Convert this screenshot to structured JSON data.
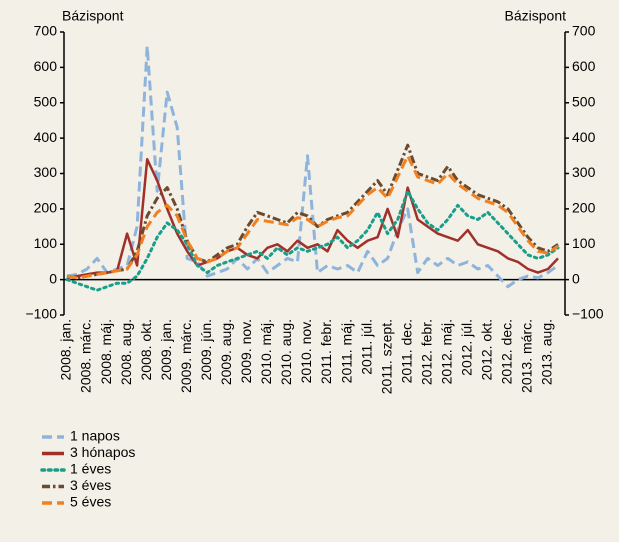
{
  "chart_data": {
    "type": "line",
    "ylabel": "Bázispont",
    "y2label": "Bázispont",
    "categories": [
      "2008. jan.",
      null,
      "2008. márc.",
      null,
      "2008. máj.",
      null,
      "2008. aug.",
      null,
      "2008. okt.",
      null,
      "2009. jan.",
      null,
      "2009. márc.",
      null,
      "2009. jún.",
      null,
      "2009. aug.",
      null,
      "2009. nov.",
      null,
      "2010. máj.",
      null,
      "2010. aug.",
      null,
      "2010. nov.",
      null,
      "2011. febr.",
      null,
      "2011. máj.",
      null,
      "2011. júl.",
      null,
      "2011. szept.",
      null,
      "2011. dec.",
      null,
      "2012. febr.",
      null,
      "2012. máj.",
      null,
      "2012. júl.",
      null,
      "2012. okt.",
      null,
      "2012. dec.",
      null,
      "2013. márc.",
      null,
      "2013. aug.",
      null
    ],
    "ylim": [
      -100,
      700
    ],
    "yticks": [
      {
        "value": -100,
        "label": "−100"
      },
      0,
      100,
      200,
      300,
      400,
      500,
      600,
      700
    ],
    "y2lim": [
      -100,
      700
    ],
    "y2ticks": [
      {
        "value": -100,
        "label": "−100"
      },
      0,
      100,
      200,
      300,
      400,
      500,
      600,
      700
    ],
    "series": [
      {
        "name": "1 napos",
        "color": "#8fb4dc",
        "style": "dashed",
        "values": [
          10,
          15,
          30,
          60,
          20,
          30,
          40,
          150,
          660,
          250,
          530,
          430,
          60,
          50,
          10,
          20,
          30,
          60,
          30,
          60,
          20,
          40,
          60,
          50,
          350,
          20,
          40,
          30,
          40,
          20,
          80,
          40,
          60,
          140,
          200,
          20,
          60,
          40,
          60,
          40,
          50,
          30,
          40,
          10,
          -20,
          0,
          10,
          5,
          20,
          40
        ]
      },
      {
        "name": "3 hónapos",
        "color": "#a0302a",
        "style": "solid",
        "values": [
          5,
          10,
          15,
          20,
          20,
          25,
          130,
          40,
          340,
          280,
          200,
          130,
          80,
          40,
          50,
          60,
          80,
          90,
          70,
          60,
          90,
          100,
          80,
          110,
          90,
          100,
          80,
          140,
          110,
          90,
          110,
          120,
          200,
          120,
          260,
          170,
          150,
          130,
          120,
          110,
          140,
          100,
          90,
          80,
          60,
          50,
          30,
          20,
          30,
          60
        ]
      },
      {
        "name": "1 éves",
        "color": "#1a9e8a",
        "style": "dotted",
        "values": [
          0,
          -10,
          -20,
          -30,
          -20,
          -10,
          -10,
          10,
          60,
          120,
          160,
          140,
          100,
          40,
          20,
          40,
          50,
          60,
          70,
          80,
          60,
          90,
          70,
          90,
          80,
          90,
          100,
          120,
          90,
          110,
          140,
          190,
          130,
          170,
          250,
          200,
          160,
          140,
          170,
          210,
          180,
          170,
          190,
          160,
          130,
          100,
          70,
          60,
          70,
          90
        ]
      },
      {
        "name": "3 éves",
        "color": "#6b4a2e",
        "style": "dashdot",
        "values": [
          10,
          5,
          10,
          15,
          20,
          25,
          30,
          80,
          180,
          230,
          260,
          200,
          110,
          60,
          50,
          70,
          90,
          100,
          150,
          190,
          180,
          170,
          160,
          190,
          180,
          150,
          170,
          180,
          190,
          220,
          250,
          280,
          240,
          310,
          380,
          300,
          290,
          280,
          320,
          280,
          260,
          240,
          230,
          220,
          200,
          160,
          120,
          90,
          80,
          100
        ]
      },
      {
        "name": "5 éves",
        "color": "#f08020",
        "style": "dashed",
        "values": [
          10,
          5,
          10,
          15,
          20,
          25,
          30,
          70,
          150,
          190,
          210,
          180,
          110,
          60,
          50,
          60,
          80,
          90,
          130,
          170,
          165,
          160,
          155,
          175,
          170,
          150,
          165,
          175,
          180,
          210,
          240,
          260,
          230,
          290,
          350,
          290,
          280,
          270,
          300,
          270,
          250,
          230,
          220,
          210,
          190,
          150,
          110,
          80,
          75,
          95
        ]
      }
    ]
  }
}
